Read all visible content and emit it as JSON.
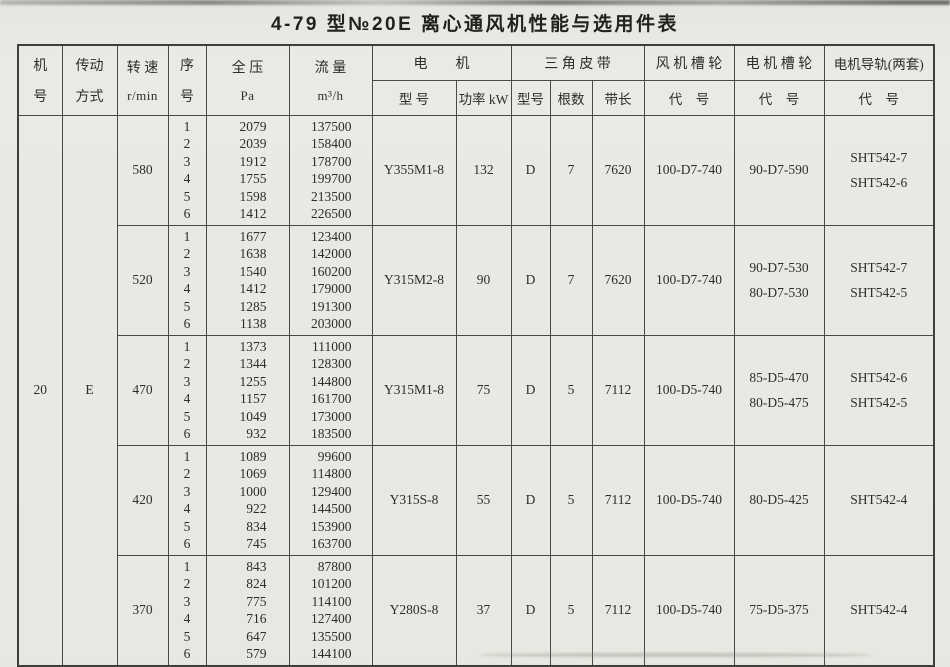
{
  "page": {
    "title": "4-79  型№20E 离心通风机性能与选用件表"
  },
  "table": {
    "header": {
      "machine_no": [
        "机",
        "号"
      ],
      "drive_mode": [
        "传动",
        "方式"
      ],
      "speed": [
        "转 速",
        "r/min"
      ],
      "seq": [
        "序",
        "号"
      ],
      "pressure": [
        "全 压",
        "Pa"
      ],
      "flow": [
        "流 量",
        "m³/h"
      ],
      "motor_group": "电　　机",
      "motor_model": "型 号",
      "motor_power": "功率 kW",
      "belt_group": "三 角 皮 带",
      "belt_model": "型号",
      "belt_count": "根数",
      "belt_length": "带长",
      "fan_pulley": "风 机 槽 轮",
      "motor_pulley": "电 机 槽 轮",
      "motor_rail": "电机导轨(两套)",
      "code": "代　号"
    },
    "machine_no": "20",
    "drive_mode": "E",
    "groups": [
      {
        "speed": "580",
        "rows": [
          [
            "1",
            "2079",
            "137500"
          ],
          [
            "2",
            "2039",
            "158400"
          ],
          [
            "3",
            "1912",
            "178700"
          ],
          [
            "4",
            "1755",
            "199700"
          ],
          [
            "5",
            "1598",
            "213500"
          ],
          [
            "6",
            "1412",
            "226500"
          ]
        ],
        "motor_model": "Y355M1-8",
        "motor_power": "132",
        "belt_model": "D",
        "belt_count": "7",
        "belt_length": "7620",
        "fan_pulley": [
          "100-D7-740"
        ],
        "motor_pulley": [
          "90-D7-590"
        ],
        "rails": [
          "SHT542-7",
          "SHT542-6"
        ]
      },
      {
        "speed": "520",
        "rows": [
          [
            "1",
            "1677",
            "123400"
          ],
          [
            "2",
            "1638",
            "142000"
          ],
          [
            "3",
            "1540",
            "160200"
          ],
          [
            "4",
            "1412",
            "179000"
          ],
          [
            "5",
            "1285",
            "191300"
          ],
          [
            "6",
            "1138",
            "203000"
          ]
        ],
        "motor_model": "Y315M2-8",
        "motor_power": "90",
        "belt_model": "D",
        "belt_count": "7",
        "belt_length": "7620",
        "fan_pulley": [
          "100-D7-740"
        ],
        "motor_pulley": [
          "90-D7-530",
          "80-D7-530"
        ],
        "rails": [
          "SHT542-7",
          "SHT542-5"
        ]
      },
      {
        "speed": "470",
        "rows": [
          [
            "1",
            "1373",
            "111000"
          ],
          [
            "2",
            "1344",
            "128300"
          ],
          [
            "3",
            "1255",
            "144800"
          ],
          [
            "4",
            "1157",
            "161700"
          ],
          [
            "5",
            "1049",
            "173000"
          ],
          [
            "6",
            "932",
            "183500"
          ]
        ],
        "motor_model": "Y315M1-8",
        "motor_power": "75",
        "belt_model": "D",
        "belt_count": "5",
        "belt_length": "7112",
        "fan_pulley": [
          "100-D5-740"
        ],
        "motor_pulley": [
          "85-D5-470",
          "80-D5-475"
        ],
        "rails": [
          "SHT542-6",
          "SHT542-5"
        ]
      },
      {
        "speed": "420",
        "rows": [
          [
            "1",
            "1089",
            "99600"
          ],
          [
            "2",
            "1069",
            "114800"
          ],
          [
            "3",
            "1000",
            "129400"
          ],
          [
            "4",
            "922",
            "144500"
          ],
          [
            "5",
            "834",
            "153900"
          ],
          [
            "6",
            "745",
            "163700"
          ]
        ],
        "motor_model": "Y315S-8",
        "motor_power": "55",
        "belt_model": "D",
        "belt_count": "5",
        "belt_length": "7112",
        "fan_pulley": [
          "100-D5-740"
        ],
        "motor_pulley": [
          "80-D5-425"
        ],
        "rails": [
          "SHT542-4"
        ]
      },
      {
        "speed": "370",
        "rows": [
          [
            "1",
            "843",
            "87800"
          ],
          [
            "2",
            "824",
            "101200"
          ],
          [
            "3",
            "775",
            "114100"
          ],
          [
            "4",
            "716",
            "127400"
          ],
          [
            "5",
            "647",
            "135500"
          ],
          [
            "6",
            "579",
            "144100"
          ]
        ],
        "motor_model": "Y280S-8",
        "motor_power": "37",
        "belt_model": "D",
        "belt_count": "5",
        "belt_length": "7112",
        "fan_pulley": [
          "100-D5-740"
        ],
        "motor_pulley": [
          "75-D5-375"
        ],
        "rails": [
          "SHT542-4"
        ]
      }
    ]
  }
}
